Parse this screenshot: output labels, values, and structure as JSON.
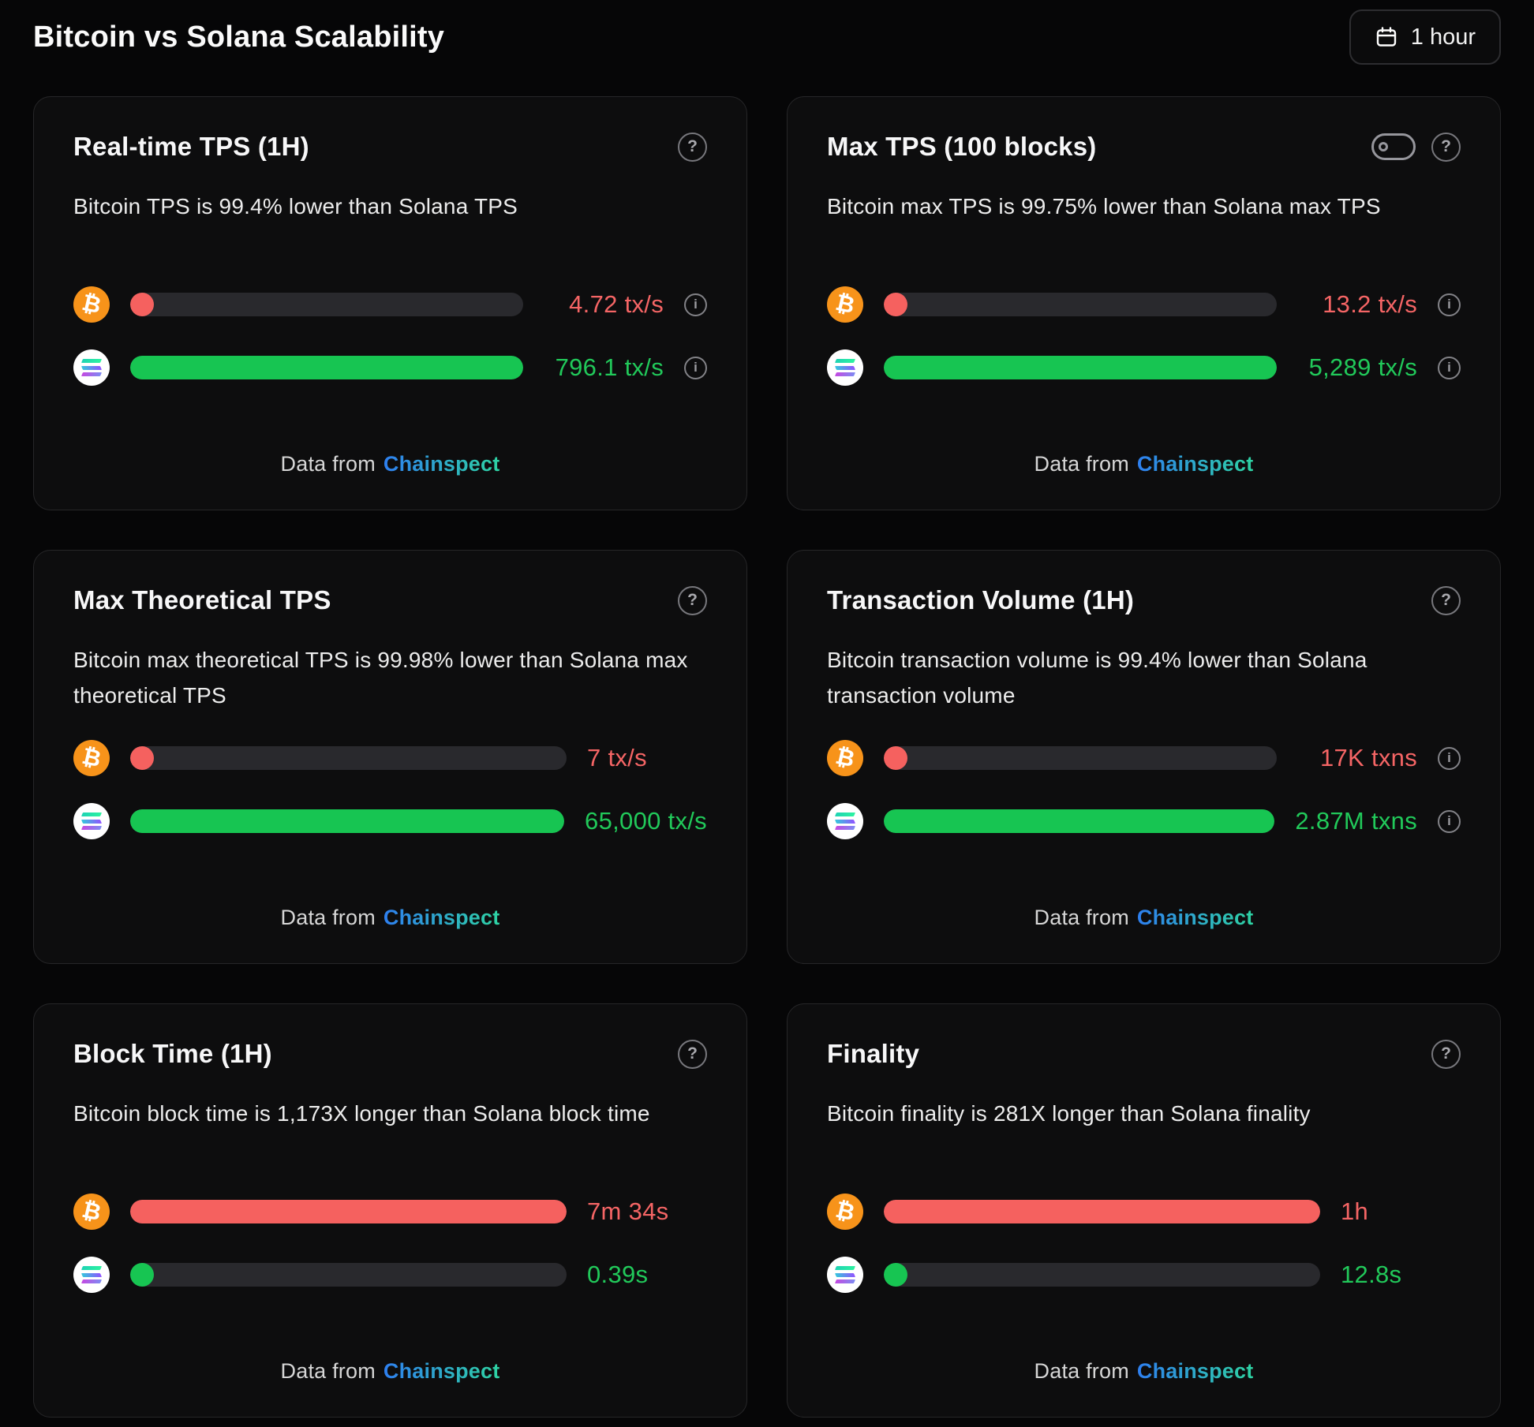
{
  "page": {
    "title": "Bitcoin vs Solana Scalability"
  },
  "toolbar": {
    "time_range_label": "1 hour",
    "time_range_icon": "calendar-icon"
  },
  "source": {
    "label": "Data from",
    "link": "Chainspect"
  },
  "colors": {
    "bitcoin_red": "#f56565",
    "solana_green": "#21c95a",
    "bitcoin_orange": "#f7931a",
    "chainspect_gradient": [
      "#2e7ff0",
      "#2ed3a3"
    ]
  },
  "cards": [
    {
      "title": "Real-time TPS (1H)",
      "description": "Bitcoin TPS is 99.4% lower than Solana TPS",
      "has_toggle": false,
      "btc": {
        "value": "4.72 tx/s",
        "bar_pct": 3,
        "color": "red",
        "info": true
      },
      "sol": {
        "value": "796.1 tx/s",
        "bar_pct": 100,
        "color": "green",
        "info": true
      }
    },
    {
      "title": "Max TPS (100 blocks)",
      "description": "Bitcoin max TPS is 99.75% lower than Solana max TPS",
      "has_toggle": true,
      "btc": {
        "value": "13.2 tx/s",
        "bar_pct": 3,
        "color": "red",
        "info": true
      },
      "sol": {
        "value": "5,289 tx/s",
        "bar_pct": 100,
        "color": "green",
        "info": true
      }
    },
    {
      "title": "Max Theoretical TPS",
      "description": "Bitcoin max theoretical TPS is 99.98% lower than Solana max theoretical TPS",
      "has_toggle": false,
      "btc": {
        "value": "7 tx/s",
        "bar_pct": 3,
        "color": "red",
        "info": false
      },
      "sol": {
        "value": "65,000 tx/s",
        "bar_pct": 100,
        "color": "green",
        "info": false
      }
    },
    {
      "title": "Transaction Volume (1H)",
      "description": "Bitcoin transaction volume is 99.4% lower than Solana transaction volume",
      "has_toggle": false,
      "btc": {
        "value": "17K txns",
        "bar_pct": 3,
        "color": "red",
        "info": true
      },
      "sol": {
        "value": "2.87M txns",
        "bar_pct": 100,
        "color": "green",
        "info": true
      }
    },
    {
      "title": "Block Time (1H)",
      "description": "Bitcoin block time is 1,173X longer than Solana block time",
      "has_toggle": false,
      "btc": {
        "value": "7m 34s",
        "bar_pct": 100,
        "color": "red",
        "info": false
      },
      "sol": {
        "value": "0.39s",
        "bar_pct": 3,
        "color": "green",
        "info": false
      }
    },
    {
      "title": "Finality",
      "description": "Bitcoin finality is 281X longer than Solana finality",
      "has_toggle": false,
      "btc": {
        "value": "1h",
        "bar_pct": 100,
        "color": "red",
        "info": false
      },
      "sol": {
        "value": "12.8s",
        "bar_pct": 3,
        "color": "green",
        "info": false
      }
    }
  ]
}
